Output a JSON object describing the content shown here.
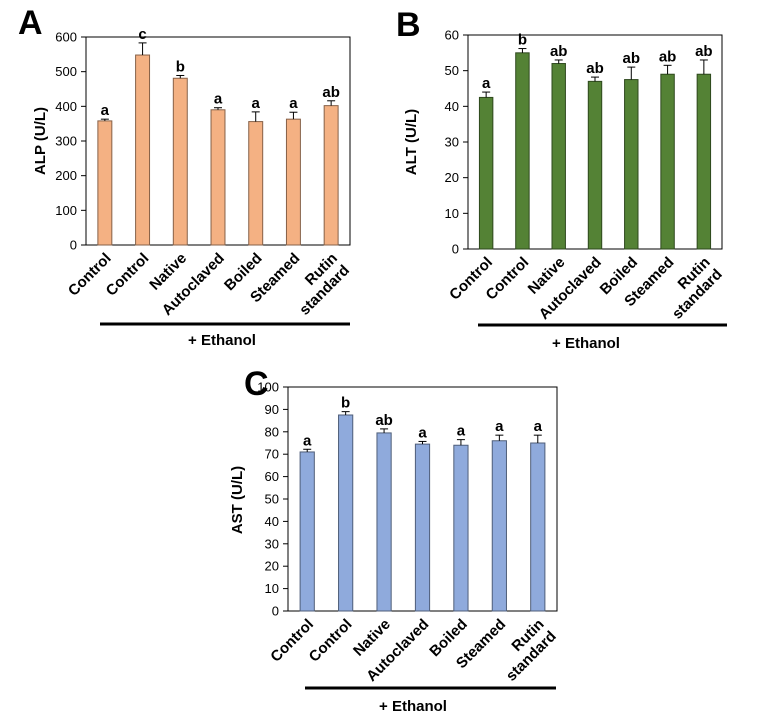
{
  "chart_data": [
    {
      "panel_letter": "A",
      "type": "bar",
      "ylabel": "ALP (U/L)",
      "ylim": [
        0,
        600
      ],
      "yticks": [
        0,
        100,
        200,
        300,
        400,
        500,
        600
      ],
      "categories": [
        [
          "Control"
        ],
        [
          "Control"
        ],
        [
          "Native"
        ],
        [
          "Autoclaved"
        ],
        [
          "Boiled"
        ],
        [
          "Steamed"
        ],
        [
          "Rutin",
          "standard"
        ]
      ],
      "values": [
        358,
        548,
        481,
        390,
        356,
        363,
        402
      ],
      "errors": [
        5,
        35,
        8,
        6,
        28,
        20,
        14
      ],
      "significance": [
        "a",
        "c",
        "b",
        "a",
        "a",
        "a",
        "ab"
      ],
      "bar_color": "#F4B183",
      "group_label": "+ Ethanol"
    },
    {
      "panel_letter": "B",
      "type": "bar",
      "ylabel": "ALT (U/L)",
      "ylim": [
        0,
        60
      ],
      "yticks": [
        0,
        10,
        20,
        30,
        40,
        50,
        60
      ],
      "categories": [
        [
          "Control"
        ],
        [
          "Control"
        ],
        [
          "Native"
        ],
        [
          "Autoclaved"
        ],
        [
          "Boiled"
        ],
        [
          "Steamed"
        ],
        [
          "Rutin",
          "standard"
        ]
      ],
      "values": [
        42.5,
        55,
        52,
        47,
        47.5,
        49,
        49
      ],
      "errors": [
        1.5,
        1.2,
        1.0,
        1.2,
        3.5,
        2.5,
        4.0
      ],
      "significance": [
        "a",
        "b",
        "ab",
        "ab",
        "ab",
        "ab",
        "ab"
      ],
      "bar_color": "#548235",
      "group_label": "+ Ethanol"
    },
    {
      "panel_letter": "C",
      "type": "bar",
      "ylabel": "AST (U/L)",
      "ylim": [
        0,
        100
      ],
      "yticks": [
        0,
        10,
        20,
        30,
        40,
        50,
        60,
        70,
        80,
        90,
        100
      ],
      "categories": [
        [
          "Control"
        ],
        [
          "Control"
        ],
        [
          "Native"
        ],
        [
          "Autoclaved"
        ],
        [
          "Boiled"
        ],
        [
          "Steamed"
        ],
        [
          "Rutin",
          "standard"
        ]
      ],
      "values": [
        71,
        87.5,
        79.5,
        74.5,
        74,
        76,
        75
      ],
      "errors": [
        1.2,
        1.5,
        1.8,
        1.2,
        2.5,
        2.5,
        3.5
      ],
      "significance": [
        "a",
        "b",
        "ab",
        "a",
        "a",
        "a",
        "a"
      ],
      "bar_color": "#8FAADC",
      "group_label": "+ Ethanol"
    }
  ]
}
